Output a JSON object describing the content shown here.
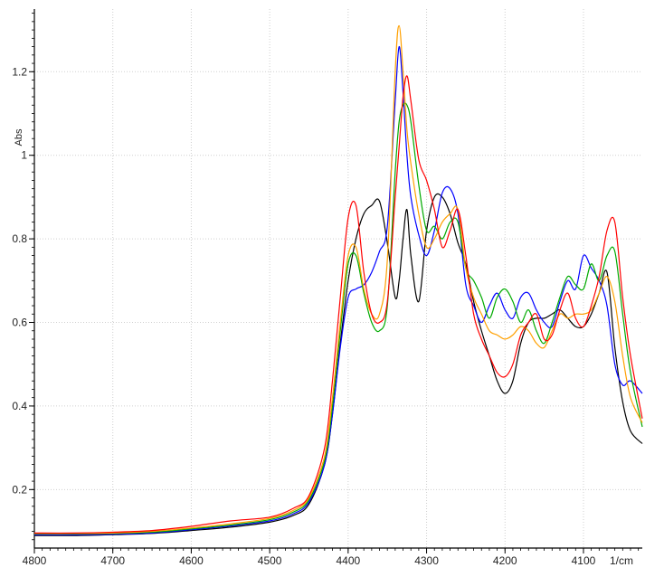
{
  "chart_data": {
    "type": "line",
    "title": "",
    "xlabel": "1/cm",
    "ylabel": "Abs",
    "x_reversed": true,
    "xlim": [
      4800,
      4025
    ],
    "ylim": [
      0.06,
      1.35
    ],
    "grid": true,
    "legend": "none",
    "x_ticks": [
      {
        "value": 4800,
        "label": "4800"
      },
      {
        "value": 4700,
        "label": "4700"
      },
      {
        "value": 4600,
        "label": "4600"
      },
      {
        "value": 4500,
        "label": "4500"
      },
      {
        "value": 4400,
        "label": "4400"
      },
      {
        "value": 4300,
        "label": "4300"
      },
      {
        "value": 4200,
        "label": "4200"
      },
      {
        "value": 4100,
        "label": "4100"
      }
    ],
    "y_ticks": [
      {
        "value": 0.2,
        "label": "0.2"
      },
      {
        "value": 0.4,
        "label": "0.4"
      },
      {
        "value": 0.6,
        "label": "0.6"
      },
      {
        "value": 0.8,
        "label": "0.8"
      },
      {
        "value": 1.0,
        "label": "1"
      },
      {
        "value": 1.2,
        "label": "1.2"
      }
    ],
    "x": [
      4800,
      4750,
      4700,
      4650,
      4600,
      4550,
      4500,
      4470,
      4450,
      4430,
      4420,
      4410,
      4400,
      4390,
      4380,
      4370,
      4360,
      4350,
      4340,
      4335,
      4330,
      4325,
      4320,
      4310,
      4300,
      4290,
      4280,
      4270,
      4260,
      4250,
      4240,
      4230,
      4220,
      4210,
      4200,
      4190,
      4180,
      4170,
      4160,
      4150,
      4140,
      4130,
      4120,
      4110,
      4100,
      4090,
      4080,
      4070,
      4060,
      4050,
      4040,
      4025
    ],
    "series": [
      {
        "color": "#000000",
        "values": [
          0.09,
          0.09,
          0.092,
          0.095,
          0.102,
          0.11,
          0.122,
          0.138,
          0.165,
          0.26,
          0.38,
          0.55,
          0.7,
          0.8,
          0.86,
          0.88,
          0.89,
          0.79,
          0.66,
          0.7,
          0.8,
          0.87,
          0.76,
          0.65,
          0.82,
          0.9,
          0.9,
          0.86,
          0.79,
          0.74,
          0.65,
          0.58,
          0.52,
          0.46,
          0.43,
          0.46,
          0.55,
          0.6,
          0.61,
          0.61,
          0.62,
          0.63,
          0.61,
          0.59,
          0.59,
          0.62,
          0.67,
          0.72,
          0.54,
          0.41,
          0.34,
          0.31
        ]
      },
      {
        "color": "#0000ff",
        "values": [
          0.092,
          0.092,
          0.093,
          0.096,
          0.104,
          0.113,
          0.125,
          0.142,
          0.17,
          0.26,
          0.38,
          0.54,
          0.66,
          0.68,
          0.69,
          0.72,
          0.77,
          0.83,
          1.13,
          1.26,
          1.15,
          1.0,
          0.9,
          0.81,
          0.76,
          0.82,
          0.91,
          0.92,
          0.86,
          0.69,
          0.64,
          0.6,
          0.64,
          0.67,
          0.63,
          0.61,
          0.66,
          0.67,
          0.63,
          0.6,
          0.59,
          0.65,
          0.7,
          0.68,
          0.76,
          0.73,
          0.7,
          0.64,
          0.5,
          0.45,
          0.46,
          0.43
        ]
      },
      {
        "color": "#00aa00",
        "values": [
          0.094,
          0.094,
          0.095,
          0.098,
          0.106,
          0.115,
          0.128,
          0.146,
          0.175,
          0.27,
          0.4,
          0.58,
          0.74,
          0.76,
          0.67,
          0.6,
          0.58,
          0.64,
          0.96,
          1.08,
          1.12,
          1.12,
          1.08,
          0.93,
          0.82,
          0.83,
          0.8,
          0.84,
          0.84,
          0.73,
          0.7,
          0.66,
          0.61,
          0.66,
          0.68,
          0.65,
          0.6,
          0.63,
          0.58,
          0.55,
          0.6,
          0.66,
          0.71,
          0.69,
          0.68,
          0.74,
          0.7,
          0.76,
          0.77,
          0.62,
          0.48,
          0.35
        ]
      },
      {
        "color": "#ffa000",
        "values": [
          0.095,
          0.095,
          0.096,
          0.1,
          0.108,
          0.118,
          0.131,
          0.15,
          0.18,
          0.28,
          0.42,
          0.6,
          0.76,
          0.78,
          0.68,
          0.62,
          0.62,
          0.75,
          1.2,
          1.31,
          1.2,
          1.06,
          0.98,
          0.86,
          0.78,
          0.8,
          0.84,
          0.86,
          0.87,
          0.73,
          0.66,
          0.62,
          0.58,
          0.57,
          0.56,
          0.57,
          0.59,
          0.58,
          0.55,
          0.54,
          0.58,
          0.62,
          0.61,
          0.62,
          0.62,
          0.63,
          0.67,
          0.71,
          0.65,
          0.52,
          0.42,
          0.36
        ]
      },
      {
        "color": "#ff0000",
        "values": [
          0.096,
          0.096,
          0.098,
          0.102,
          0.112,
          0.125,
          0.134,
          0.155,
          0.185,
          0.3,
          0.46,
          0.66,
          0.85,
          0.88,
          0.72,
          0.62,
          0.6,
          0.65,
          0.9,
          1.02,
          1.14,
          1.19,
          1.13,
          0.99,
          0.94,
          0.87,
          0.78,
          0.82,
          0.87,
          0.76,
          0.62,
          0.56,
          0.52,
          0.48,
          0.47,
          0.5,
          0.57,
          0.6,
          0.62,
          0.56,
          0.57,
          0.63,
          0.67,
          0.61,
          0.59,
          0.64,
          0.71,
          0.82,
          0.84,
          0.66,
          0.52,
          0.37
        ]
      }
    ]
  }
}
